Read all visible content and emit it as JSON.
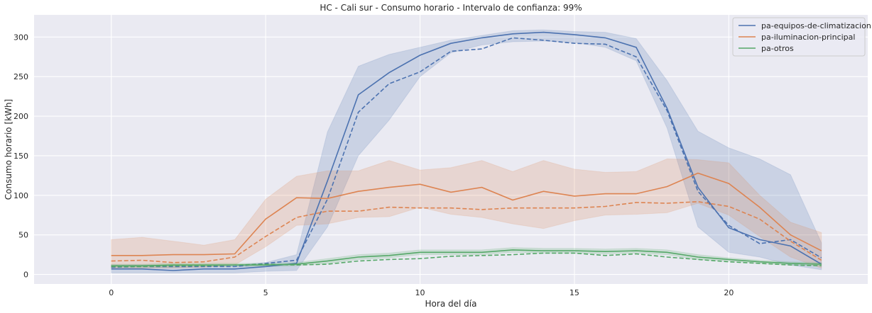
{
  "chart_data": {
    "type": "line",
    "title": "HC - Cali sur - Consumo horario - Intervalo de confianza: 99%",
    "xlabel": "Hora del día",
    "ylabel": "Consumo horario [kWh]",
    "xlim": [
      -2.5,
      24.5
    ],
    "ylim": [
      -12,
      328
    ],
    "xticks": [
      0,
      5,
      10,
      15,
      20
    ],
    "yticks": [
      0,
      50,
      100,
      150,
      200,
      250,
      300
    ],
    "grid": true,
    "legend_position": "top-right",
    "x": [
      0,
      1,
      2,
      3,
      4,
      5,
      6,
      7,
      8,
      9,
      10,
      11,
      12,
      13,
      14,
      15,
      16,
      17,
      18,
      19,
      20,
      21,
      22,
      23
    ],
    "series": [
      {
        "name": "pa-equipos-de-climatizacion",
        "color": "#4c72b0",
        "values": [
          7,
          7,
          5,
          7,
          7,
          10,
          14,
          118,
          227,
          255,
          277,
          292,
          299,
          304,
          306,
          303,
          299,
          287,
          210,
          110,
          59,
          44,
          36,
          13
        ],
        "dashed_values": [
          9,
          10,
          10,
          10,
          10,
          14,
          18,
          95,
          205,
          241,
          256,
          282,
          285,
          299,
          296,
          292,
          291,
          275,
          207,
          105,
          62,
          39,
          44,
          21
        ],
        "ci_lower": [
          2,
          2,
          2,
          2,
          2,
          4,
          5,
          60,
          150,
          195,
          250,
          280,
          290,
          294,
          295,
          293,
          287,
          270,
          185,
          60,
          28,
          22,
          12,
          6
        ],
        "ci_upper": [
          12,
          12,
          12,
          12,
          12,
          15,
          25,
          180,
          263,
          278,
          287,
          296,
          302,
          308,
          309,
          307,
          306,
          298,
          245,
          181,
          160,
          146,
          126,
          40
        ]
      },
      {
        "name": "pa-iluminacion-principal",
        "color": "#dd8452",
        "values": [
          24,
          24,
          25,
          25,
          26,
          70,
          97,
          96,
          105,
          110,
          114,
          104,
          110,
          94,
          105,
          99,
          102,
          102,
          111,
          128,
          115,
          85,
          50,
          30
        ],
        "dashed_values": [
          17,
          18,
          15,
          16,
          22,
          48,
          72,
          80,
          80,
          85,
          84,
          84,
          82,
          84,
          84,
          84,
          86,
          91,
          90,
          92,
          86,
          70,
          42,
          18
        ],
        "ci_lower": [
          8,
          8,
          8,
          9,
          12,
          35,
          62,
          64,
          72,
          73,
          85,
          76,
          72,
          64,
          58,
          68,
          75,
          76,
          78,
          90,
          75,
          48,
          22,
          8
        ],
        "ci_upper": [
          44,
          47,
          42,
          37,
          44,
          95,
          124,
          131,
          131,
          144,
          132,
          135,
          144,
          130,
          144,
          133,
          129,
          130,
          146,
          145,
          141,
          100,
          66,
          53
        ]
      },
      {
        "name": "pa-otros",
        "color": "#55a868",
        "values": [
          11,
          11,
          12,
          12,
          12,
          12,
          13,
          17,
          22,
          24,
          28,
          28,
          28,
          31,
          30,
          30,
          29,
          30,
          28,
          22,
          19,
          16,
          14,
          13
        ],
        "dashed_values": [
          10,
          10,
          11,
          11,
          12,
          13,
          12,
          13,
          17,
          19,
          20,
          23,
          24,
          25,
          27,
          27,
          24,
          26,
          22,
          19,
          16,
          14,
          12,
          11
        ],
        "ci_lower": [
          9,
          9,
          9,
          10,
          10,
          10,
          11,
          14,
          19,
          21,
          25,
          25,
          25,
          28,
          27,
          27,
          26,
          27,
          25,
          19,
          17,
          14,
          12,
          11
        ],
        "ci_upper": [
          13,
          13,
          14,
          14,
          14,
          14,
          15,
          20,
          25,
          27,
          31,
          31,
          31,
          34,
          33,
          33,
          32,
          33,
          31,
          25,
          21,
          18,
          16,
          15
        ]
      }
    ]
  }
}
